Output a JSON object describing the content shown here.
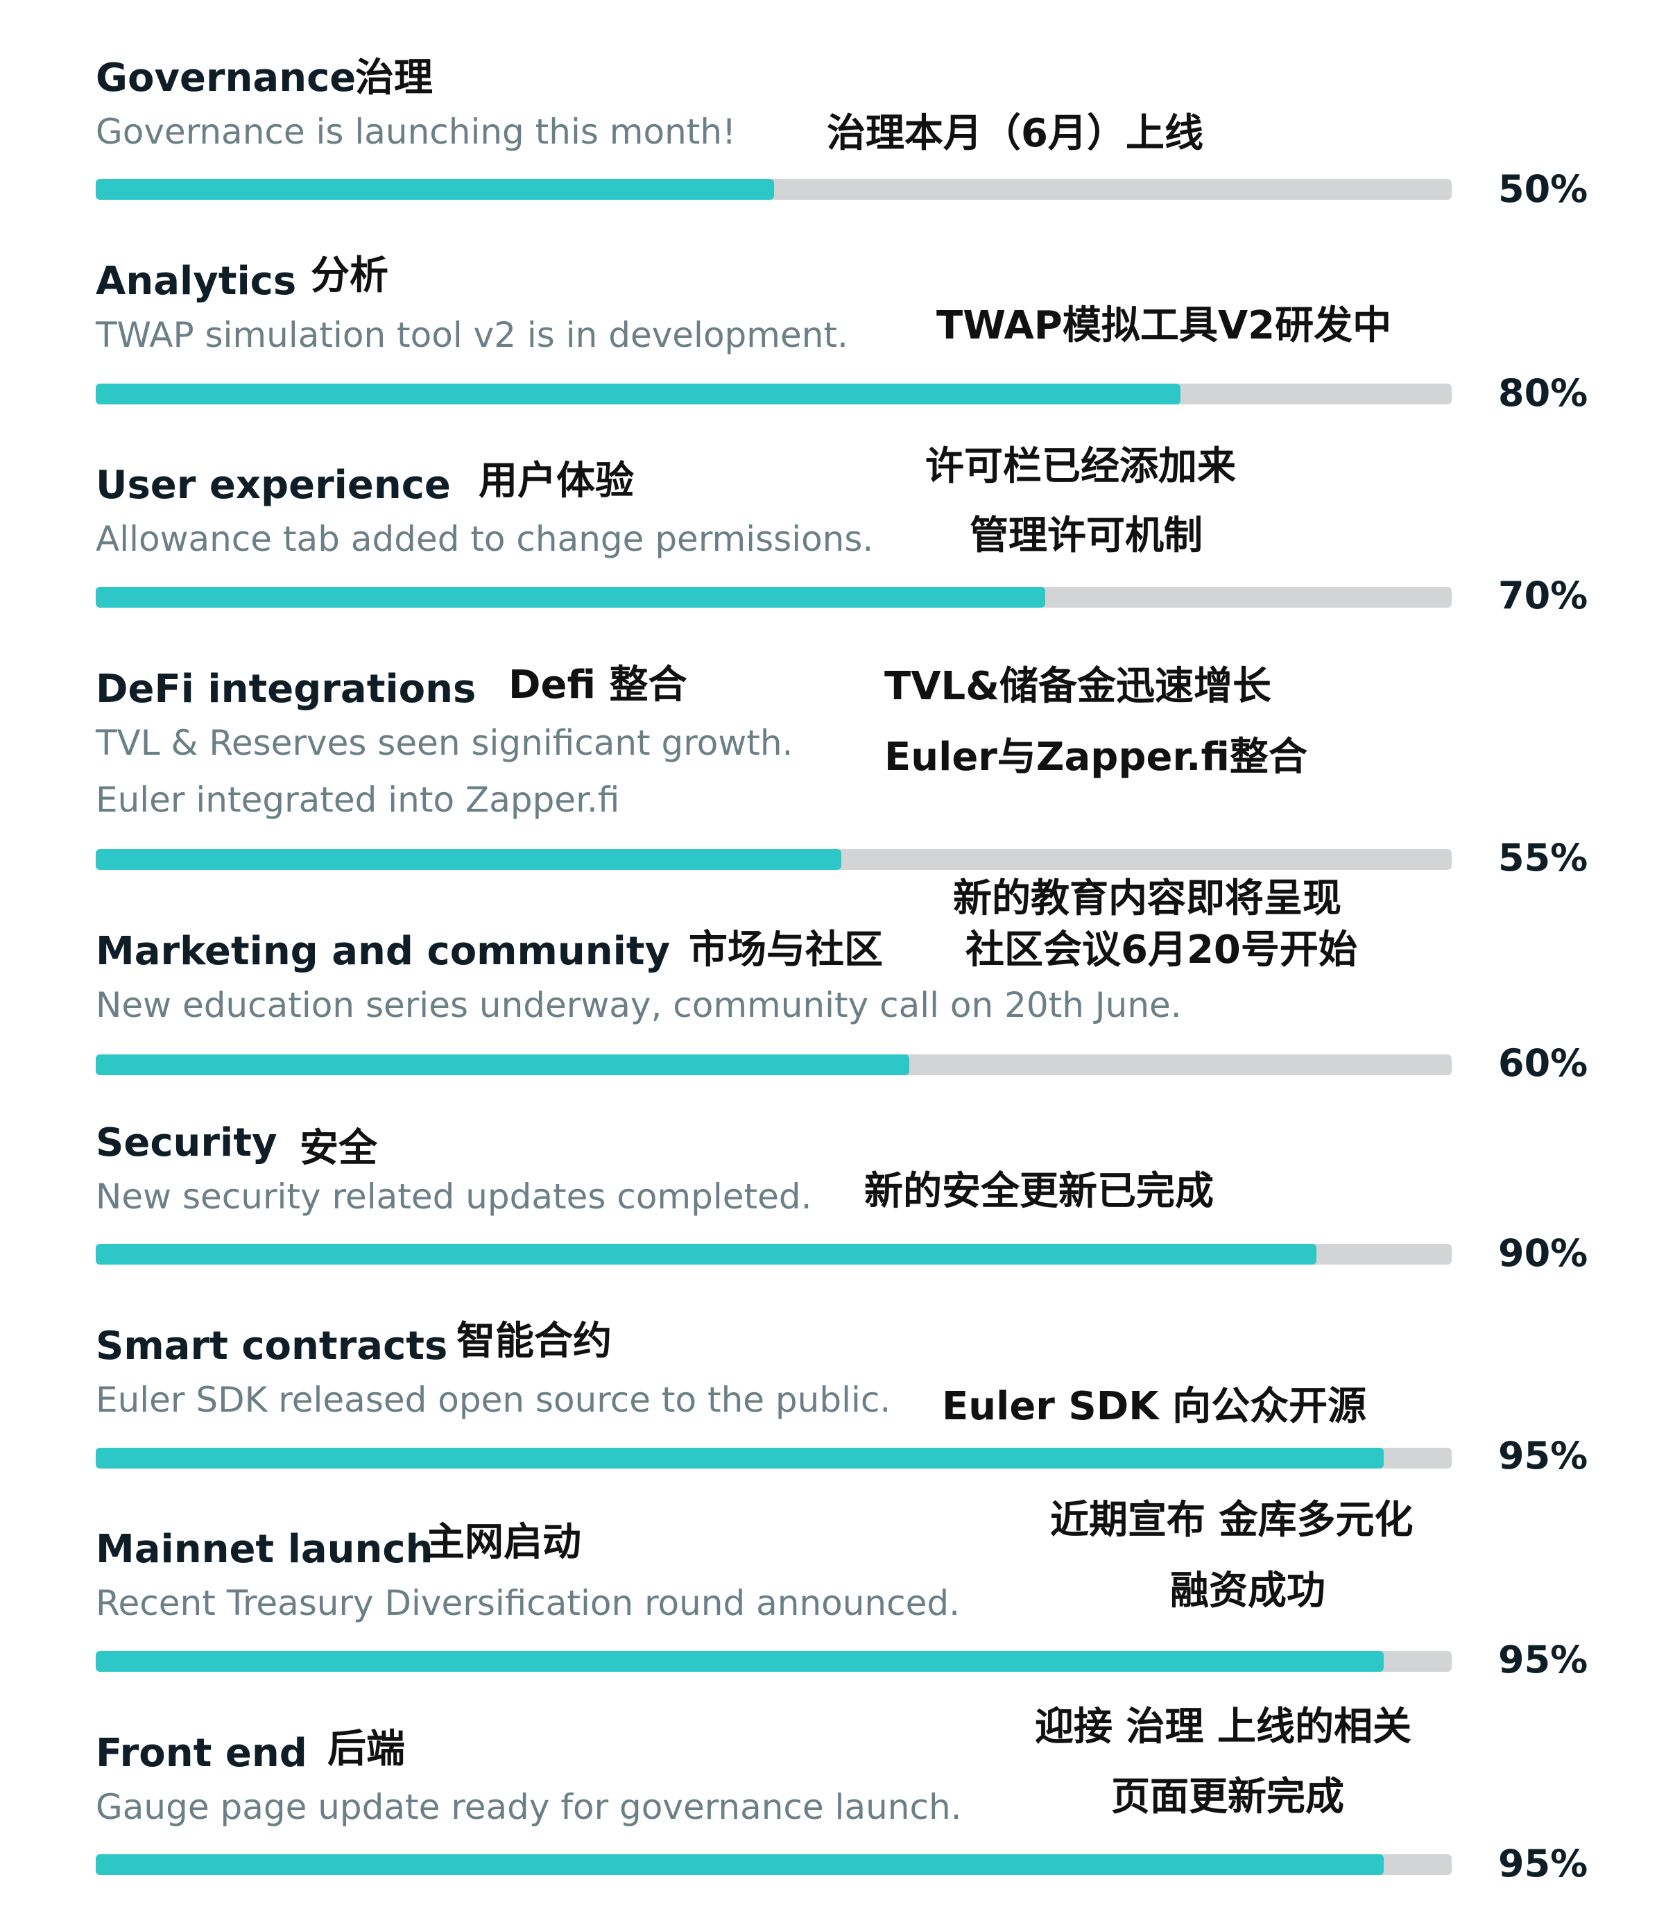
{
  "accent_color": "#2dc7c7",
  "track_color": "#d3d4d6",
  "items": [
    {
      "title": "Governance",
      "title_cn": "治理",
      "desc": [
        "Governance is launching this month!"
      ],
      "cn_notes": [
        "治理本月（6月）上线"
      ],
      "progress": 0.5,
      "percent": "50%"
    },
    {
      "title": "Analytics",
      "title_cn": "分析",
      "desc": [
        "TWAP simulation tool v2 is in development."
      ],
      "cn_notes": [
        "TWAP模拟工具V2研发中"
      ],
      "progress": 0.8,
      "percent": "80%"
    },
    {
      "title": "User experience",
      "title_cn": "用户体验",
      "desc": [
        "Allowance tab added to change permissions."
      ],
      "cn_notes": [
        "许可栏已经添加来",
        "管理许可机制"
      ],
      "progress": 0.7,
      "percent": "70%"
    },
    {
      "title": "DeFi integrations",
      "title_cn": "Defi 整合",
      "desc": [
        "TVL & Reserves seen significant growth.",
        "Euler integrated into Zapper.fi"
      ],
      "cn_notes": [
        "TVL&储备金迅速增长",
        "Euler与Zapper.fi整合"
      ],
      "progress": 0.55,
      "percent": "55%"
    },
    {
      "title": "Marketing and community",
      "title_cn": "市场与社区",
      "desc": [
        "New education series underway, community call on 20th June."
      ],
      "cn_notes": [
        "新的教育内容即将呈现",
        "社区会议6月20号开始"
      ],
      "progress": 0.6,
      "percent": "60%"
    },
    {
      "title": "Security",
      "title_cn": "安全",
      "desc": [
        "New security related updates completed."
      ],
      "cn_notes": [
        "新的安全更新已完成"
      ],
      "progress": 0.9,
      "percent": "90%"
    },
    {
      "title": "Smart contracts",
      "title_cn": "智能合约",
      "desc": [
        "Euler SDK released open source to the public."
      ],
      "cn_notes": [
        "Euler SDK 向公众开源"
      ],
      "progress": 0.95,
      "percent": "95%"
    },
    {
      "title": "Mainnet launch",
      "title_cn": "主网启动",
      "desc": [
        "Recent Treasury Diversification round announced."
      ],
      "cn_notes": [
        "近期宣布 金库多元化",
        "融资成功"
      ],
      "progress": 0.95,
      "percent": "95%"
    },
    {
      "title": "Front end",
      "title_cn": "后端",
      "desc": [
        "Gauge page update ready for governance launch."
      ],
      "cn_notes": [
        "迎接 治理 上线的相关",
        "页面更新完成"
      ],
      "progress": 0.95,
      "percent": "95%"
    }
  ]
}
